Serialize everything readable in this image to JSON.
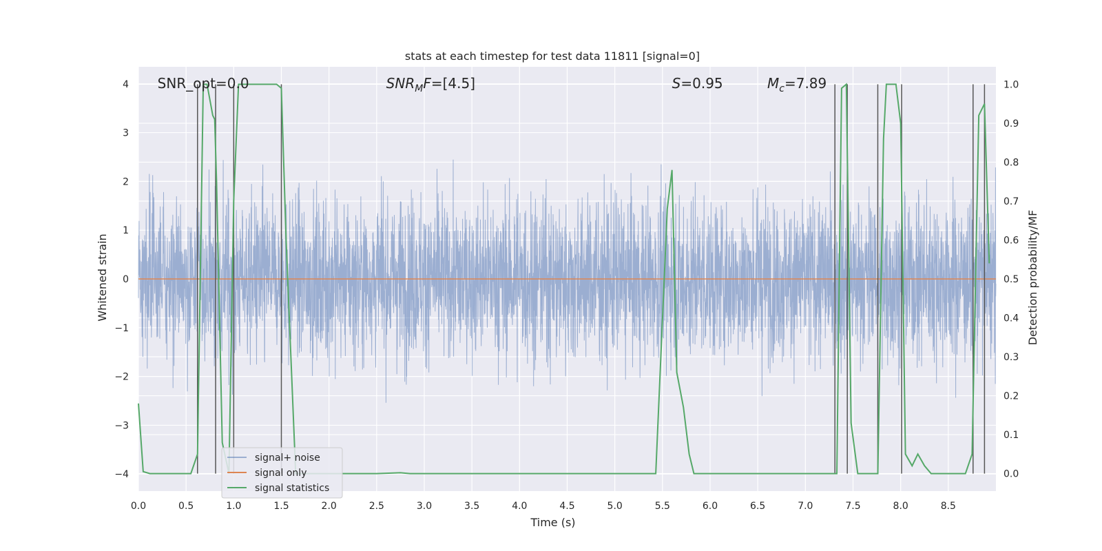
{
  "chart_data": {
    "type": "line",
    "title": "stats at each timestep for test data 11811 [signal=0]",
    "xlabel": "Time (s)",
    "ylabel_left": "Whitened strain",
    "ylabel_right": "Detection probability/MF",
    "xlim": [
      0,
      9.0
    ],
    "ylim_left": [
      -4.35,
      4.35
    ],
    "ylim_right": [
      -0.045,
      1.045
    ],
    "x_ticks": [
      "0.0",
      "0.5",
      "1.0",
      "1.5",
      "2.0",
      "2.5",
      "3.0",
      "3.5",
      "4.0",
      "4.5",
      "5.0",
      "5.5",
      "6.0",
      "6.5",
      "7.0",
      "7.5",
      "8.0",
      "8.5"
    ],
    "y_ticks_left": [
      "−4",
      "−3",
      "−2",
      "−1",
      "0",
      "1",
      "2",
      "3",
      "4"
    ],
    "y_ticks_right": [
      "0.0",
      "0.1",
      "0.2",
      "0.3",
      "0.4",
      "0.5",
      "0.6",
      "0.7",
      "0.8",
      "0.9",
      "1.0"
    ],
    "grid": true,
    "legend_position": "lower-left",
    "annotations": [
      {
        "text": "SNR_opt=0.0",
        "x": 0.2,
        "y": 4.0
      },
      {
        "text": "SNR",
        "sub": "M",
        "after": "F=[4.5]",
        "italic": true,
        "x": 2.6,
        "y": 4.0
      },
      {
        "text": "S",
        "after": "=0.95",
        "italic": true,
        "x": 5.6,
        "y": 4.0
      },
      {
        "text": "M",
        "sub": "c",
        "after": "=7.89",
        "italic": true,
        "x": 6.6,
        "y": 4.0
      }
    ],
    "series": [
      {
        "name": "signal+ noise",
        "color": "#4c72b0",
        "alpha": 0.5,
        "axis": "left",
        "description_envelope": {
          "core_abs": 1.6,
          "max_abs": 3.9,
          "samples": 4096
        }
      },
      {
        "name": "signal only",
        "color": "#dd8452",
        "axis": "left",
        "x": [
          0,
          9.0
        ],
        "y": [
          0,
          0
        ]
      },
      {
        "name": "signal statistics",
        "color": "#55a868",
        "axis": "right",
        "x": [
          0.0,
          0.05,
          0.12,
          0.2,
          0.3,
          0.4,
          0.55,
          0.62,
          0.68,
          0.72,
          0.78,
          0.8,
          0.82,
          0.88,
          0.95,
          1.0,
          1.05,
          1.1,
          1.3,
          1.45,
          1.5,
          1.55,
          1.65,
          1.8,
          2.5,
          2.75,
          2.85,
          3.0,
          4.0,
          5.0,
          5.43,
          5.55,
          5.6,
          5.65,
          5.72,
          5.78,
          5.83,
          5.9,
          6.5,
          7.0,
          7.28,
          7.33,
          7.38,
          7.43,
          7.48,
          7.55,
          7.6,
          7.7,
          7.76,
          7.82,
          7.85,
          7.9,
          7.95,
          8.0,
          8.05,
          8.12,
          8.18,
          8.25,
          8.32,
          8.5,
          8.68,
          8.75,
          8.82,
          8.88,
          8.93
        ],
        "y": [
          0.18,
          0.005,
          0.0,
          0.0,
          0.0,
          0.0,
          0.0,
          0.05,
          1.0,
          1.0,
          0.92,
          0.91,
          0.75,
          0.08,
          0.0,
          0.7,
          1.0,
          1.0,
          1.0,
          1.0,
          0.99,
          0.6,
          0.0,
          0.0,
          0.0,
          0.002,
          0.0,
          0.0,
          0.0,
          0.0,
          0.0,
          0.68,
          0.78,
          0.26,
          0.17,
          0.05,
          0.0,
          0.0,
          0.0,
          0.0,
          0.0,
          0.0,
          0.99,
          1.0,
          0.13,
          0.0,
          0.0,
          0.0,
          0.0,
          0.86,
          1.0,
          1.0,
          1.0,
          0.9,
          0.05,
          0.02,
          0.05,
          0.02,
          0.0,
          0.0,
          0.0,
          0.05,
          0.92,
          0.95,
          0.54
        ]
      }
    ],
    "vertical_lines_x": [
      0.62,
      0.81,
      1.0,
      1.5,
      7.31,
      7.44,
      7.76,
      8.01,
      8.76,
      8.88
    ]
  }
}
